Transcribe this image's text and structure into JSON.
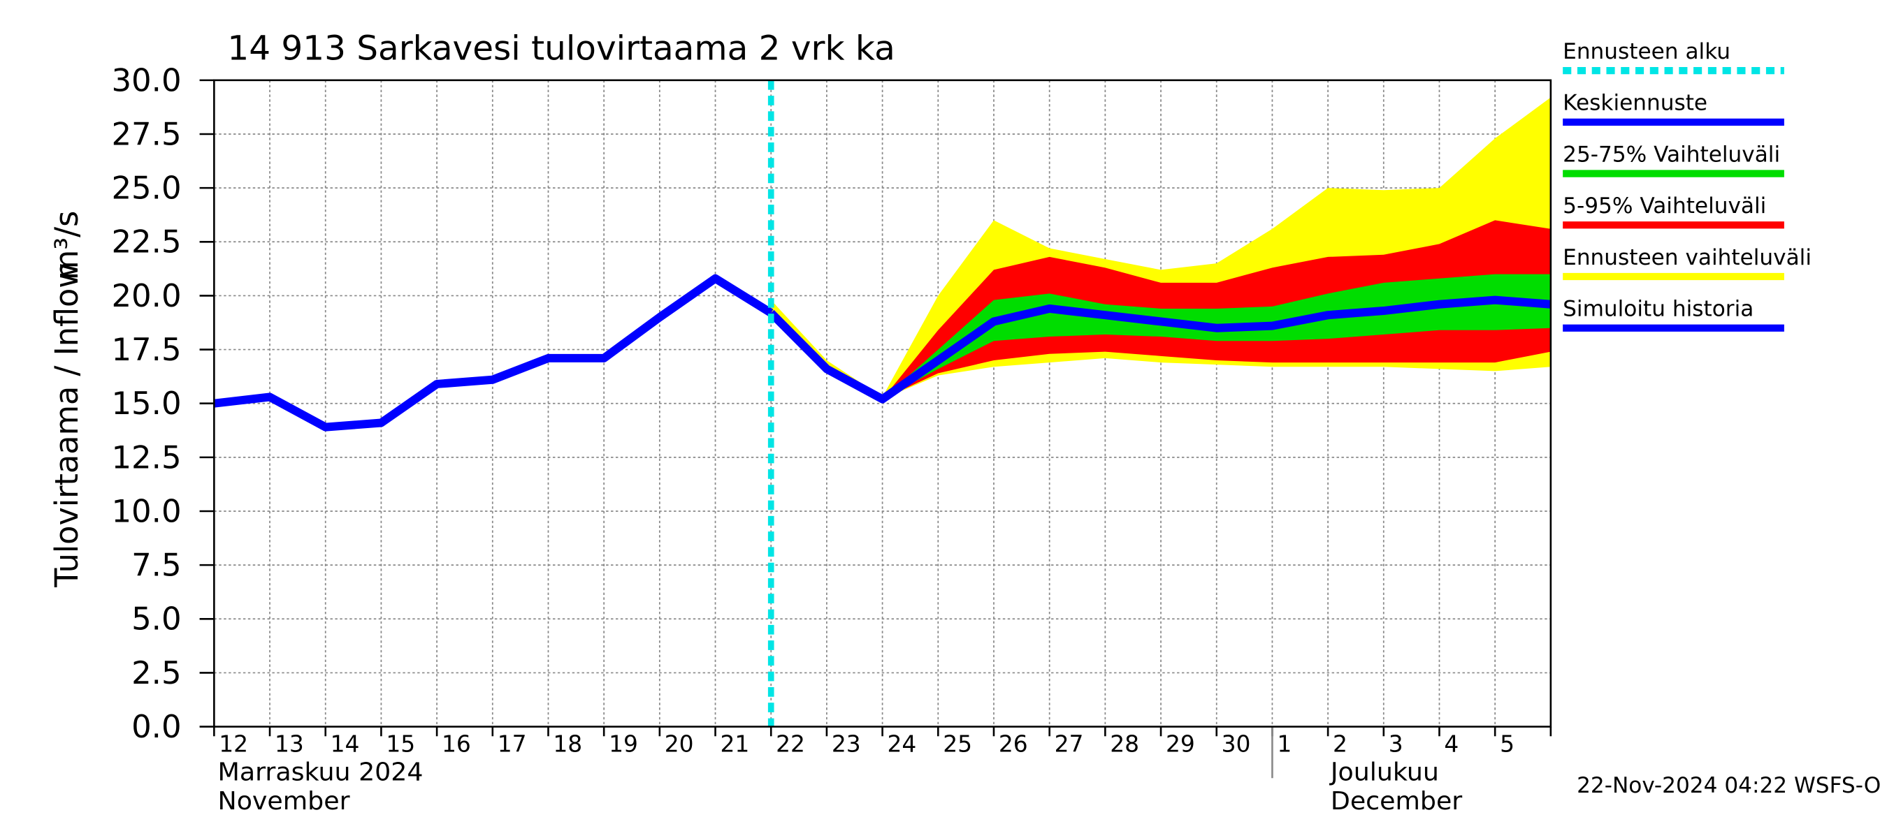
{
  "chart_data": {
    "type": "line",
    "title": "14 913 Sarkavesi tulovirtaama 2 vrk ka",
    "y_label": "Tulovirtaama / Inflow",
    "y_unit": "m³/s",
    "month_labels": [
      {
        "fi": "Marraskuu 2024",
        "en": "November"
      },
      {
        "fi": "Joulukuu",
        "en": "December"
      }
    ],
    "footer": "22-Nov-2024 04:22 WSFS-O",
    "categories": [
      "12",
      "13",
      "14",
      "15",
      "16",
      "17",
      "18",
      "19",
      "20",
      "21",
      "22",
      "23",
      "24",
      "25",
      "26",
      "27",
      "28",
      "29",
      "30",
      "1",
      "2",
      "3",
      "4",
      "5",
      null
    ],
    "forecast_start": {
      "name": "Ennusteen alku",
      "color": "#00e5e5",
      "index": 10
    },
    "bands": [
      {
        "name": "Ennusteen vaihteluväli",
        "color": "#ffff00",
        "upper": [
          null,
          null,
          null,
          null,
          null,
          null,
          null,
          null,
          null,
          null,
          19.8,
          17.0,
          15.3,
          20.0,
          23.5,
          22.2,
          21.7,
          21.2,
          21.5,
          23.1,
          25.0,
          24.9,
          25.0,
          27.3,
          29.2
        ],
        "lower": [
          null,
          null,
          null,
          null,
          null,
          null,
          null,
          null,
          null,
          null,
          19.2,
          16.6,
          15.2,
          16.3,
          16.7,
          16.9,
          17.1,
          16.9,
          16.8,
          16.7,
          16.7,
          16.7,
          16.6,
          16.5,
          16.7
        ]
      },
      {
        "name": "5-95% Vaihteluväli",
        "color": "#ff0000",
        "upper": [
          null,
          null,
          null,
          null,
          null,
          null,
          null,
          null,
          null,
          null,
          19.2,
          16.8,
          15.2,
          18.4,
          21.2,
          21.8,
          21.3,
          20.6,
          20.6,
          21.3,
          21.8,
          21.9,
          22.4,
          23.5,
          23.1
        ],
        "lower": [
          null,
          null,
          null,
          null,
          null,
          null,
          null,
          null,
          null,
          null,
          19.2,
          16.6,
          15.2,
          16.4,
          17.0,
          17.3,
          17.4,
          17.2,
          17.0,
          16.9,
          16.9,
          16.9,
          16.9,
          16.9,
          17.4
        ]
      },
      {
        "name": "25-75% Vaihteluväli",
        "color": "#00dd00",
        "upper": [
          null,
          null,
          null,
          null,
          null,
          null,
          null,
          null,
          null,
          null,
          19.2,
          16.7,
          15.2,
          17.5,
          19.8,
          20.1,
          19.6,
          19.4,
          19.4,
          19.5,
          20.1,
          20.6,
          20.8,
          21.0,
          21.0
        ],
        "lower": [
          null,
          null,
          null,
          null,
          null,
          null,
          null,
          null,
          null,
          null,
          19.2,
          16.6,
          15.2,
          16.6,
          17.9,
          18.1,
          18.2,
          18.1,
          17.9,
          17.9,
          18.0,
          18.2,
          18.4,
          18.4,
          18.5
        ]
      }
    ],
    "series": [
      {
        "name": "Keskiennuste",
        "color": "#0000ff",
        "values": [
          null,
          null,
          null,
          null,
          null,
          null,
          null,
          null,
          null,
          null,
          19.2,
          16.6,
          15.2,
          17.0,
          18.8,
          19.4,
          19.1,
          18.8,
          18.5,
          18.6,
          19.1,
          19.3,
          19.6,
          19.8,
          19.6
        ]
      },
      {
        "name": "Simuloitu historia",
        "color": "#0000ff",
        "values": [
          15.0,
          15.3,
          13.9,
          14.1,
          15.9,
          16.1,
          17.1,
          17.1,
          19.0,
          20.8,
          19.2,
          null,
          null,
          null,
          null,
          null,
          null,
          null,
          null,
          null,
          null,
          null,
          null,
          null,
          null
        ]
      }
    ],
    "ylim": [
      0,
      30
    ],
    "yticks": [
      {
        "value": 0,
        "label": "0.0"
      },
      {
        "value": 2.5,
        "label": "2.5"
      },
      {
        "value": 5,
        "label": "5.0"
      },
      {
        "value": 7.5,
        "label": "7.5"
      },
      {
        "value": 10,
        "label": "10.0"
      },
      {
        "value": 12.5,
        "label": "12.5"
      },
      {
        "value": 15,
        "label": "15.0"
      },
      {
        "value": 17.5,
        "label": "17.5"
      },
      {
        "value": 20,
        "label": "20.0"
      },
      {
        "value": 22.5,
        "label": "22.5"
      },
      {
        "value": 25,
        "label": "25.0"
      },
      {
        "value": 27.5,
        "label": "27.5"
      },
      {
        "value": 30,
        "label": "30.0"
      }
    ],
    "grid": true
  }
}
